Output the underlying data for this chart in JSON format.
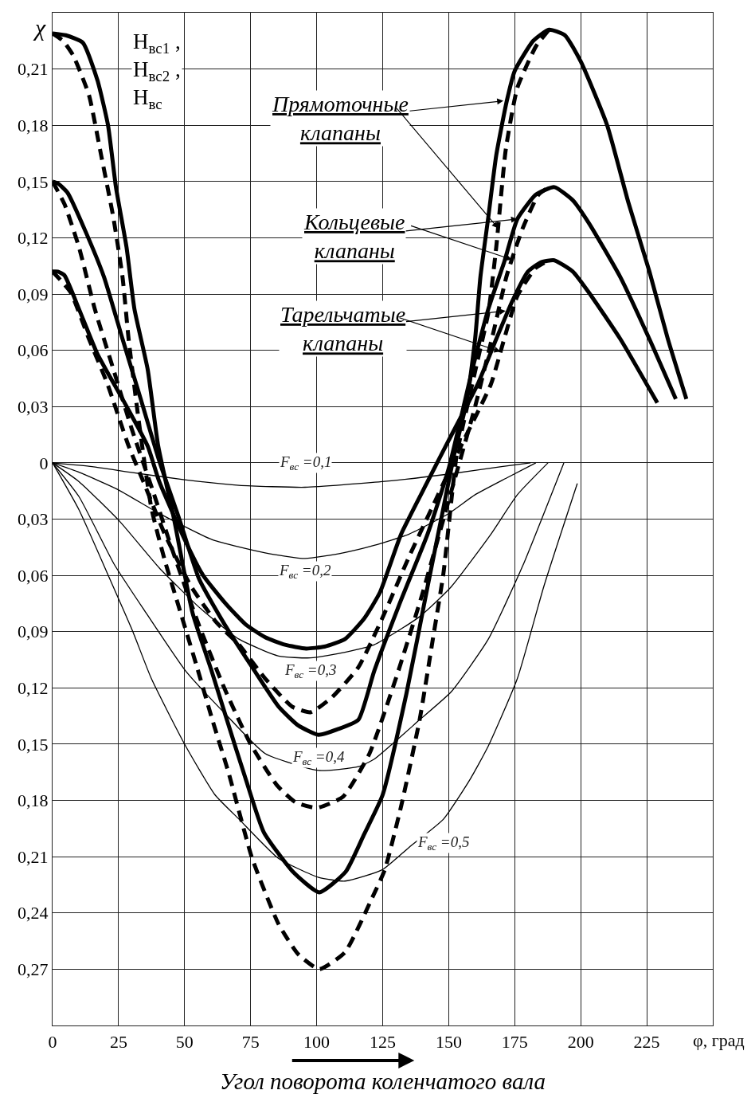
{
  "chart_data": {
    "type": "line",
    "xlabel": "Угол поворота коленчатого вала",
    "ylabel": "χ",
    "xlim": [
      0,
      250
    ],
    "xticks": [
      0,
      25,
      50,
      75,
      100,
      125,
      150,
      175,
      200,
      225
    ],
    "ylim": [
      -0.3,
      0.24
    ],
    "yticks": [
      {
        "value": 0.21,
        "label": "0,21"
      },
      {
        "value": 0.18,
        "label": "0,18"
      },
      {
        "value": 0.15,
        "label": "0,15"
      },
      {
        "value": 0.12,
        "label": "0,12"
      },
      {
        "value": 0.09,
        "label": "0,09"
      },
      {
        "value": 0.06,
        "label": "0,06"
      },
      {
        "value": 0.03,
        "label": "0,03"
      },
      0,
      {
        "value": -0.03,
        "label": "0,03"
      },
      {
        "value": -0.06,
        "label": "0,06"
      },
      {
        "value": -0.09,
        "label": "0,09"
      },
      {
        "value": -0.12,
        "label": "0,12"
      },
      {
        "value": -0.15,
        "label": "0,15"
      },
      {
        "value": -0.18,
        "label": "0,18"
      },
      {
        "value": -0.21,
        "label": "0,21"
      },
      {
        "value": -0.24,
        "label": "0,24"
      },
      {
        "value": -0.27,
        "label": "0,27"
      }
    ],
    "grid": true,
    "marker": "none",
    "series": [
      {
        "color": "#000000",
        "line_style": "solid",
        "x": [
          0,
          5,
          11.5,
          17,
          21,
          24,
          28,
          31,
          36,
          40,
          46,
          53,
          60,
          66,
          73,
          80,
          91,
          101,
          111,
          118,
          125,
          134,
          142,
          148,
          152,
          157,
          160,
          162,
          165,
          168,
          172,
          175,
          182,
          188,
          194,
          200,
          210,
          218,
          226,
          233,
          240
        ],
        "values": [
          0.229,
          0.228,
          0.224,
          0.204,
          0.18,
          0.147,
          0.115,
          0.082,
          0.05,
          0.009,
          -0.03,
          -0.08,
          -0.11,
          -0.137,
          -0.168,
          -0.197,
          -0.218,
          -0.229,
          -0.218,
          -0.198,
          -0.177,
          -0.123,
          -0.066,
          -0.024,
          0.004,
          0.034,
          0.066,
          0.099,
          0.131,
          0.164,
          0.193,
          0.209,
          0.225,
          0.231,
          0.228,
          0.214,
          0.18,
          0.139,
          0.102,
          0.066,
          0.034
        ]
      },
      {
        "color": "#000000",
        "line_style": "dashed",
        "x": [
          0,
          4,
          7.9,
          13.8,
          18.4,
          23,
          26.5,
          28.8,
          32.3,
          37.4,
          42.5,
          48.5,
          54.5,
          60.5,
          66.6,
          75.6,
          85.6,
          93,
          101,
          110.7,
          121,
          125.8,
          132,
          139,
          144,
          148,
          153,
          157,
          161,
          165,
          168,
          171.6,
          176,
          183,
          188
        ],
        "values": [
          0.229,
          0.225,
          0.217,
          0.196,
          0.164,
          0.131,
          0.099,
          0.066,
          0.026,
          -0.024,
          -0.052,
          -0.08,
          -0.108,
          -0.137,
          -0.165,
          -0.211,
          -0.246,
          -0.262,
          -0.27,
          -0.261,
          -0.232,
          -0.217,
          -0.183,
          -0.137,
          -0.094,
          -0.059,
          0.004,
          0.03,
          0.055,
          0.08,
          0.115,
          0.167,
          0.2,
          0.222,
          0.231
        ]
      },
      {
        "color": "#000000",
        "line_style": "solid",
        "x": [
          0,
          2,
          5.7,
          12.6,
          19.5,
          26.5,
          33.4,
          40.4,
          48,
          55.5,
          65.5,
          75.6,
          85.6,
          93,
          100.7,
          108,
          115.8,
          121.8,
          132,
          142,
          150,
          159,
          165,
          171,
          176,
          183,
          190,
          197,
          203,
          215,
          226,
          236
        ],
        "values": [
          0.15,
          0.149,
          0.144,
          0.123,
          0.099,
          0.066,
          0.034,
          0.001,
          -0.03,
          -0.062,
          -0.087,
          -0.109,
          -0.13,
          -0.14,
          -0.145,
          -0.142,
          -0.137,
          -0.111,
          -0.073,
          -0.038,
          -0.003,
          0.05,
          0.082,
          0.107,
          0.13,
          0.143,
          0.147,
          0.14,
          0.128,
          0.099,
          0.066,
          0.034
        ]
      },
      {
        "color": "#000000",
        "line_style": "dashed",
        "x": [
          0,
          4.5,
          10,
          16,
          23,
          30,
          38,
          45,
          55,
          65,
          75,
          85,
          92,
          100,
          110,
          120,
          130,
          140,
          150,
          160,
          167,
          172,
          178,
          184,
          189
        ],
        "values": [
          0.15,
          0.138,
          0.115,
          0.082,
          0.05,
          0.018,
          -0.015,
          -0.045,
          -0.085,
          -0.12,
          -0.15,
          -0.172,
          -0.181,
          -0.184,
          -0.178,
          -0.155,
          -0.115,
          -0.07,
          -0.02,
          0.03,
          0.07,
          0.1,
          0.125,
          0.143,
          0.148
        ]
      },
      {
        "color": "#000000",
        "line_style": "solid",
        "x": [
          0,
          2,
          4.5,
          10,
          17,
          26.5,
          36,
          40.4,
          50.4,
          57,
          65.5,
          73,
          80.5,
          88,
          96,
          103,
          110.7,
          118,
          124,
          132,
          142,
          150,
          161,
          168,
          174,
          180,
          185,
          190,
          197,
          203,
          215,
          229
        ],
        "values": [
          0.102,
          0.102,
          0.1,
          0.082,
          0.058,
          0.034,
          0.009,
          -0.01,
          -0.042,
          -0.06,
          -0.075,
          -0.086,
          -0.093,
          -0.097,
          -0.099,
          -0.098,
          -0.094,
          -0.083,
          -0.069,
          -0.038,
          -0.01,
          0.012,
          0.042,
          0.066,
          0.086,
          0.102,
          0.107,
          0.108,
          0.102,
          0.091,
          0.066,
          0.032
        ]
      },
      {
        "color": "#000000",
        "line_style": "dashed",
        "x": [
          0,
          6.8,
          13.8,
          20.8,
          28.8,
          34.4,
          42.5,
          52.5,
          62,
          70.6,
          80.5,
          90.7,
          97.7,
          105.8,
          115.8,
          124.8,
          135,
          145,
          155,
          166,
          171,
          176,
          183,
          188
        ],
        "values": [
          0.102,
          0.091,
          0.066,
          0.042,
          0.009,
          -0.01,
          -0.038,
          -0.066,
          -0.085,
          -0.097,
          -0.115,
          -0.13,
          -0.133,
          -0.125,
          -0.109,
          -0.083,
          -0.05,
          -0.02,
          0.01,
          0.042,
          0.066,
          0.089,
          0.104,
          0.108
        ]
      },
      {
        "name": "F$_{вс}$ =0,1",
        "color": "#000000",
        "line_style": "solid",
        "x": [
          0,
          15,
          29.3,
          50,
          70.6,
          95.6,
          124.8,
          150,
          170,
          181
        ],
        "values": [
          0,
          -0.002,
          -0.005,
          -0.009,
          -0.012,
          -0.013,
          -0.01,
          -0.006,
          -0.002,
          0
        ]
      },
      {
        "name": "F$_{вс}$ =0,2",
        "color": "#000000",
        "line_style": "solid",
        "x": [
          0,
          10,
          24.4,
          40.4,
          60.5,
          80.5,
          95.6,
          110,
          121.8,
          135,
          150,
          160,
          172,
          183
        ],
        "values": [
          0,
          -0.005,
          -0.014,
          -0.027,
          -0.041,
          -0.048,
          -0.051,
          -0.048,
          -0.044,
          -0.038,
          -0.027,
          -0.017,
          -0.008,
          0
        ]
      },
      {
        "name": "F$_{вс}$ =0,3",
        "color": "#000000",
        "line_style": "solid",
        "x": [
          0,
          10,
          25.3,
          40.4,
          55.5,
          70.6,
          85.6,
          97.7,
          110.7,
          121.8,
          139,
          151,
          166,
          176,
          187.6
        ],
        "values": [
          0,
          -0.01,
          -0.031,
          -0.056,
          -0.077,
          -0.094,
          -0.103,
          -0.104,
          -0.101,
          -0.097,
          -0.082,
          -0.066,
          -0.038,
          -0.017,
          0
        ]
      },
      {
        "name": "F$_{вс}$ =0,4",
        "color": "#000000",
        "line_style": "solid",
        "x": [
          0,
          10,
          23.3,
          35.4,
          50.4,
          65.5,
          80.5,
          100.7,
          115.8,
          121.8,
          139,
          151,
          165,
          178,
          193.6
        ],
        "values": [
          0,
          -0.018,
          -0.054,
          -0.08,
          -0.111,
          -0.134,
          -0.155,
          -0.164,
          -0.162,
          -0.158,
          -0.137,
          -0.122,
          -0.094,
          -0.055,
          0
        ]
      },
      {
        "name": "F$_{вс}$ =0,5",
        "color": "#000000",
        "line_style": "solid",
        "x": [
          0,
          10,
          21.4,
          30.4,
          37.4,
          50,
          61.5,
          70.6,
          85.6,
          100.7,
          110.7,
          124.8,
          135,
          148,
          158,
          165,
          176,
          186,
          198.7
        ],
        "values": [
          0,
          -0.025,
          -0.061,
          -0.09,
          -0.115,
          -0.15,
          -0.177,
          -0.19,
          -0.211,
          -0.221,
          -0.223,
          -0.217,
          -0.205,
          -0.19,
          -0.169,
          -0.151,
          -0.115,
          -0.066,
          -0.011
        ]
      }
    ],
    "annotations": [
      "H$_{вс1}$ ,\nH$_{вс2}$ ,\nH$_{вс}$",
      {
        "text": "Прямоточные\nклапаны",
        "x": 170.7,
        "y": 0.193
      },
      {
        "text": "Кольцевые\nклапаны",
        "x": 176,
        "y": 0.13
      },
      {
        "text": "Тарельчатые\nклапаны",
        "x": 171.6,
        "y": 0.081
      },
      "φ, град"
    ]
  }
}
